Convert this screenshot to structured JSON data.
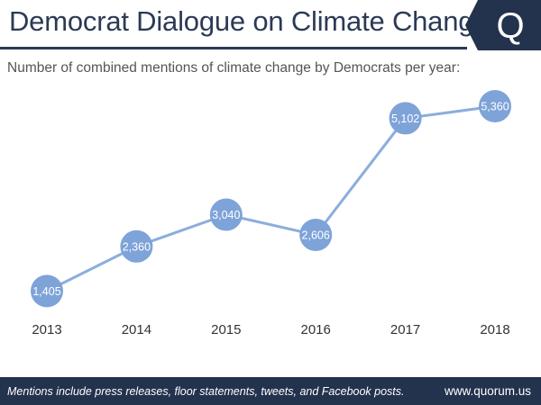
{
  "title": "Democrat Dialogue on Climate Change",
  "subtitle": "Number of combined mentions of climate change by Democrats per year:",
  "logo": {
    "icon": "quorum-q-logo-icon",
    "letter": "Q"
  },
  "footer": {
    "note": "Mentions include press releases, floor statements, tweets, and Facebook posts.",
    "url": "www.quorum.us"
  },
  "colors": {
    "brand": "#23324d",
    "line": "#8aaedd",
    "marker": "#7ea3d8",
    "label": "#ffffff",
    "tick": "#333333"
  },
  "chart_data": {
    "type": "line",
    "title": "Democrat Dialogue on Climate Change",
    "subtitle": "Number of combined mentions of climate change by Democrats per year:",
    "categories": [
      "2013",
      "2014",
      "2015",
      "2016",
      "2017",
      "2018"
    ],
    "values": [
      1405,
      2360,
      3040,
      2606,
      5102,
      5360
    ],
    "value_labels": [
      "1,405",
      "2,360",
      "3,040",
      "2,606",
      "5,102",
      "5,360"
    ],
    "ylim": [
      700,
      5900
    ],
    "grid": false,
    "legend": "none"
  }
}
